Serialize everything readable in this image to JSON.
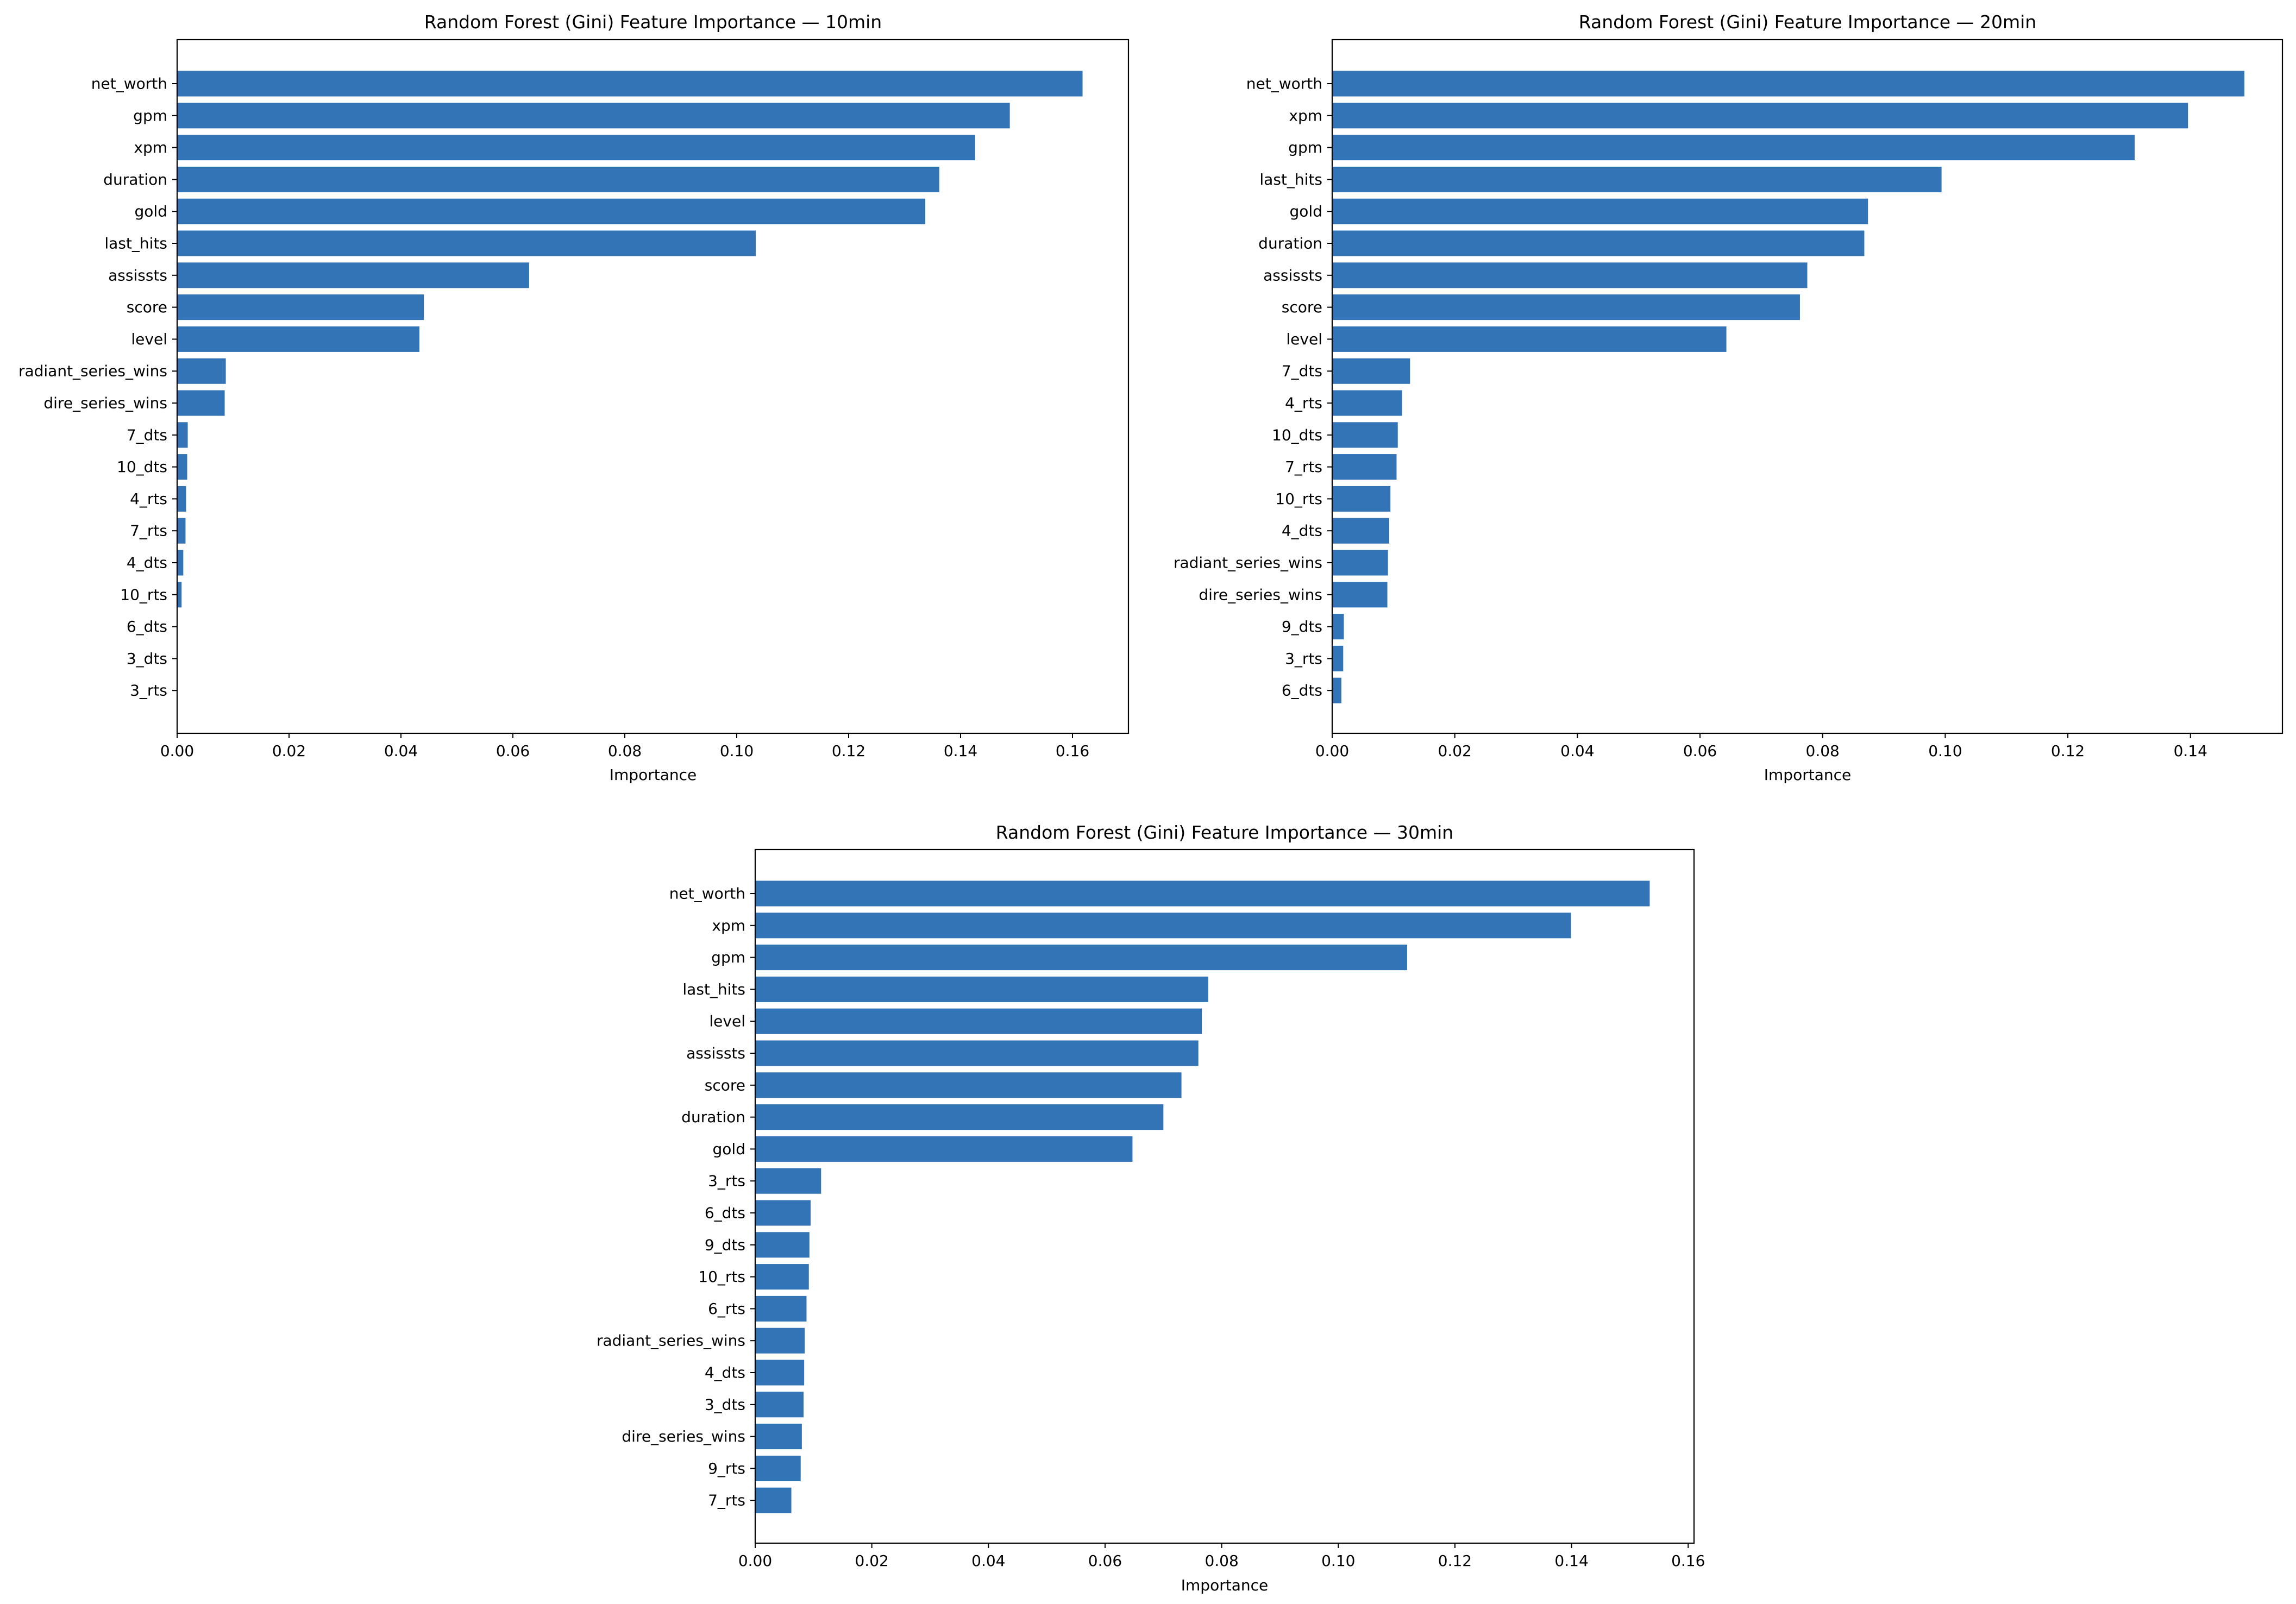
{
  "figure": {
    "bar_color": "#3274b5",
    "background": "#ffffff"
  },
  "chart_data": [
    {
      "type": "bar",
      "orientation": "horizontal",
      "title": "Random Forest (Gini) Feature Importance — 10min",
      "xlabel": "Importance",
      "ylabel": "",
      "xlim": [
        0,
        0.17
      ],
      "xticks": [
        0.0,
        0.02,
        0.04,
        0.06,
        0.08,
        0.1,
        0.12,
        0.14,
        0.16
      ],
      "xtick_labels": [
        "0.00",
        "0.02",
        "0.04",
        "0.06",
        "0.08",
        "0.10",
        "0.12",
        "0.14",
        "0.16"
      ],
      "grid": false,
      "categories": [
        "net_worth",
        "gpm",
        "xpm",
        "duration",
        "gold",
        "last_hits",
        "assissts",
        "score",
        "level",
        "radiant_series_wins",
        "dire_series_wins",
        "7_dts",
        "10_dts",
        "4_rts",
        "7_rts",
        "4_dts",
        "10_rts",
        "6_dts",
        "3_dts",
        "3_rts"
      ],
      "values": [
        0.1618,
        0.1488,
        0.1426,
        0.1362,
        0.1337,
        0.1034,
        0.0629,
        0.0441,
        0.0433,
        0.0087,
        0.0085,
        0.0019,
        0.0018,
        0.0016,
        0.0015,
        0.0011,
        0.0008,
        0.0,
        0.0,
        0.0
      ]
    },
    {
      "type": "bar",
      "orientation": "horizontal",
      "title": "Random Forest (Gini) Feature Importance — 20min",
      "xlabel": "Importance",
      "ylabel": "",
      "xlim": [
        0,
        0.155
      ],
      "xticks": [
        0.0,
        0.02,
        0.04,
        0.06,
        0.08,
        0.1,
        0.12,
        0.14
      ],
      "xtick_labels": [
        "0.00",
        "0.02",
        "0.04",
        "0.06",
        "0.08",
        "0.10",
        "0.12",
        "0.14"
      ],
      "grid": false,
      "categories": [
        "net_worth",
        "xpm",
        "gpm",
        "last_hits",
        "gold",
        "duration",
        "assissts",
        "score",
        "level",
        "7_dts",
        "4_rts",
        "10_dts",
        "7_rts",
        "10_rts",
        "4_dts",
        "radiant_series_wins",
        "dire_series_wins",
        "9_dts",
        "3_rts",
        "6_dts"
      ],
      "values": [
        0.1488,
        0.1396,
        0.1309,
        0.0994,
        0.0874,
        0.0868,
        0.0775,
        0.0763,
        0.0643,
        0.0127,
        0.0114,
        0.0107,
        0.0105,
        0.0095,
        0.0093,
        0.0091,
        0.009,
        0.0019,
        0.0018,
        0.0015
      ]
    },
    {
      "type": "bar",
      "orientation": "horizontal",
      "title": "Random Forest (Gini) Feature Importance — 30min",
      "xlabel": "Importance",
      "ylabel": "",
      "xlim": [
        0,
        0.161
      ],
      "xticks": [
        0.0,
        0.02,
        0.04,
        0.06,
        0.08,
        0.1,
        0.12,
        0.14,
        0.16
      ],
      "xtick_labels": [
        "0.00",
        "0.02",
        "0.04",
        "0.06",
        "0.08",
        "0.10",
        "0.12",
        "0.14",
        "0.16"
      ],
      "grid": false,
      "categories": [
        "net_worth",
        "xpm",
        "gpm",
        "last_hits",
        "level",
        "assissts",
        "score",
        "duration",
        "gold",
        "3_rts",
        "6_dts",
        "9_dts",
        "10_rts",
        "6_rts",
        "radiant_series_wins",
        "4_dts",
        "3_dts",
        "dire_series_wins",
        "9_rts",
        "7_rts"
      ],
      "values": [
        0.1534,
        0.1399,
        0.1118,
        0.0777,
        0.0766,
        0.076,
        0.0731,
        0.07,
        0.0647,
        0.0113,
        0.0095,
        0.0093,
        0.0092,
        0.0088,
        0.0085,
        0.0084,
        0.0083,
        0.008,
        0.0078,
        0.0062
      ]
    }
  ]
}
